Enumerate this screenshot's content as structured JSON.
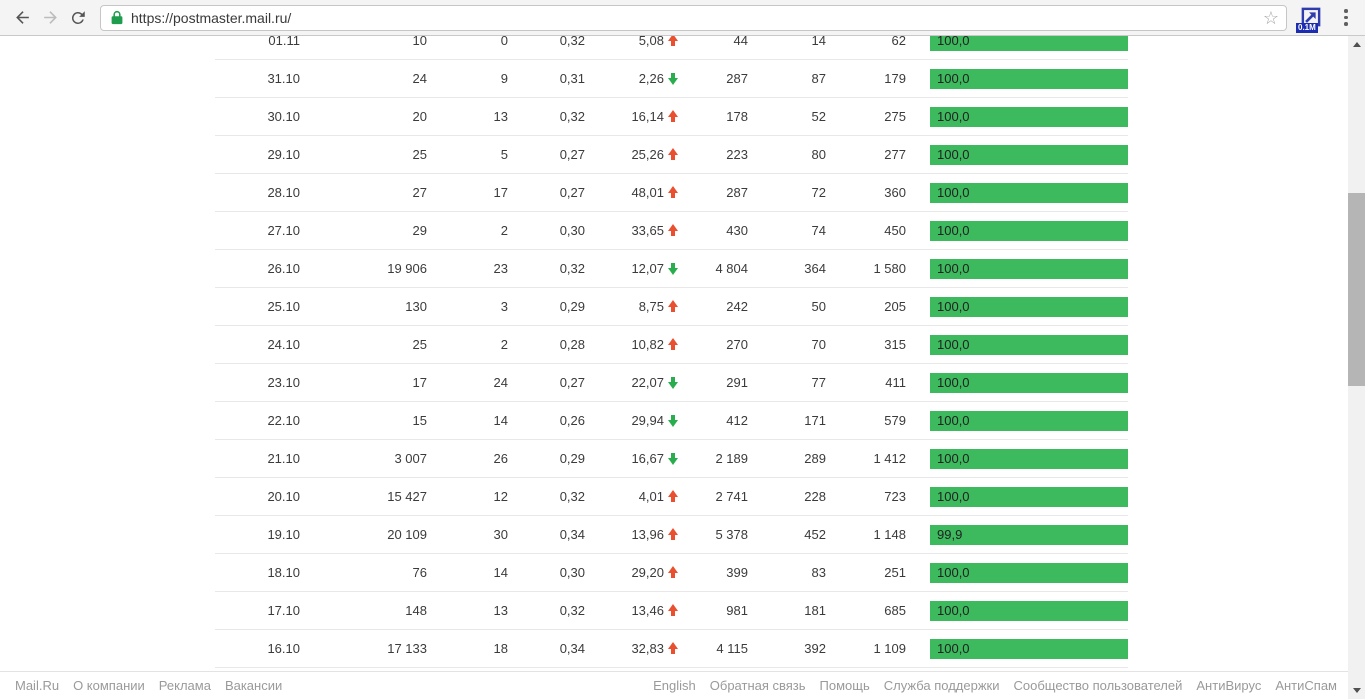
{
  "browser": {
    "url": "https://postmaster.mail.ru/",
    "extension_badge": "0.1M"
  },
  "colors": {
    "bar_green": "#3dba5e",
    "arrow_up_red": "#e8502f",
    "arrow_down_green": "#2aad4e"
  },
  "table": {
    "rows": [
      {
        "date": "01.11",
        "v1": "10",
        "v2": "0",
        "v3": "0,32",
        "delta": "5,08",
        "dir": "up",
        "v4": "44",
        "v5": "14",
        "v6": "62",
        "bar_label": "100,0",
        "bar_pct": 100
      },
      {
        "date": "31.10",
        "v1": "24",
        "v2": "9",
        "v3": "0,31",
        "delta": "2,26",
        "dir": "down",
        "v4": "287",
        "v5": "87",
        "v6": "179",
        "bar_label": "100,0",
        "bar_pct": 100
      },
      {
        "date": "30.10",
        "v1": "20",
        "v2": "13",
        "v3": "0,32",
        "delta": "16,14",
        "dir": "up",
        "v4": "178",
        "v5": "52",
        "v6": "275",
        "bar_label": "100,0",
        "bar_pct": 100
      },
      {
        "date": "29.10",
        "v1": "25",
        "v2": "5",
        "v3": "0,27",
        "delta": "25,26",
        "dir": "up",
        "v4": "223",
        "v5": "80",
        "v6": "277",
        "bar_label": "100,0",
        "bar_pct": 100
      },
      {
        "date": "28.10",
        "v1": "27",
        "v2": "17",
        "v3": "0,27",
        "delta": "48,01",
        "dir": "up",
        "v4": "287",
        "v5": "72",
        "v6": "360",
        "bar_label": "100,0",
        "bar_pct": 100
      },
      {
        "date": "27.10",
        "v1": "29",
        "v2": "2",
        "v3": "0,30",
        "delta": "33,65",
        "dir": "up",
        "v4": "430",
        "v5": "74",
        "v6": "450",
        "bar_label": "100,0",
        "bar_pct": 100
      },
      {
        "date": "26.10",
        "v1": "19 906",
        "v2": "23",
        "v3": "0,32",
        "delta": "12,07",
        "dir": "down",
        "v4": "4 804",
        "v5": "364",
        "v6": "1 580",
        "bar_label": "100,0",
        "bar_pct": 100
      },
      {
        "date": "25.10",
        "v1": "130",
        "v2": "3",
        "v3": "0,29",
        "delta": "8,75",
        "dir": "up",
        "v4": "242",
        "v5": "50",
        "v6": "205",
        "bar_label": "100,0",
        "bar_pct": 100
      },
      {
        "date": "24.10",
        "v1": "25",
        "v2": "2",
        "v3": "0,28",
        "delta": "10,82",
        "dir": "up",
        "v4": "270",
        "v5": "70",
        "v6": "315",
        "bar_label": "100,0",
        "bar_pct": 100
      },
      {
        "date": "23.10",
        "v1": "17",
        "v2": "24",
        "v3": "0,27",
        "delta": "22,07",
        "dir": "down",
        "v4": "291",
        "v5": "77",
        "v6": "411",
        "bar_label": "100,0",
        "bar_pct": 100
      },
      {
        "date": "22.10",
        "v1": "15",
        "v2": "14",
        "v3": "0,26",
        "delta": "29,94",
        "dir": "down",
        "v4": "412",
        "v5": "171",
        "v6": "579",
        "bar_label": "100,0",
        "bar_pct": 100
      },
      {
        "date": "21.10",
        "v1": "3 007",
        "v2": "26",
        "v3": "0,29",
        "delta": "16,67",
        "dir": "down",
        "v4": "2 189",
        "v5": "289",
        "v6": "1 412",
        "bar_label": "100,0",
        "bar_pct": 100
      },
      {
        "date": "20.10",
        "v1": "15 427",
        "v2": "12",
        "v3": "0,32",
        "delta": "4,01",
        "dir": "up",
        "v4": "2 741",
        "v5": "228",
        "v6": "723",
        "bar_label": "100,0",
        "bar_pct": 100
      },
      {
        "date": "19.10",
        "v1": "20 109",
        "v2": "30",
        "v3": "0,34",
        "delta": "13,96",
        "dir": "up",
        "v4": "5 378",
        "v5": "452",
        "v6": "1 148",
        "bar_label": "99,9",
        "bar_pct": 99.9
      },
      {
        "date": "18.10",
        "v1": "76",
        "v2": "14",
        "v3": "0,30",
        "delta": "29,20",
        "dir": "up",
        "v4": "399",
        "v5": "83",
        "v6": "251",
        "bar_label": "100,0",
        "bar_pct": 100
      },
      {
        "date": "17.10",
        "v1": "148",
        "v2": "13",
        "v3": "0,32",
        "delta": "13,46",
        "dir": "up",
        "v4": "981",
        "v5": "181",
        "v6": "685",
        "bar_label": "100,0",
        "bar_pct": 100
      },
      {
        "date": "16.10",
        "v1": "17 133",
        "v2": "18",
        "v3": "0,34",
        "delta": "32,83",
        "dir": "up",
        "v4": "4 115",
        "v5": "392",
        "v6": "1 109",
        "bar_label": "100,0",
        "bar_pct": 100
      }
    ]
  },
  "footer": {
    "left": [
      "Mail.Ru",
      "О компании",
      "Реклама",
      "Вакансии"
    ],
    "right": [
      "English",
      "Обратная связь",
      "Помощь",
      "Служба поддержки",
      "Сообщество пользователей",
      "АнтиВирус",
      "АнтиСпам"
    ]
  }
}
